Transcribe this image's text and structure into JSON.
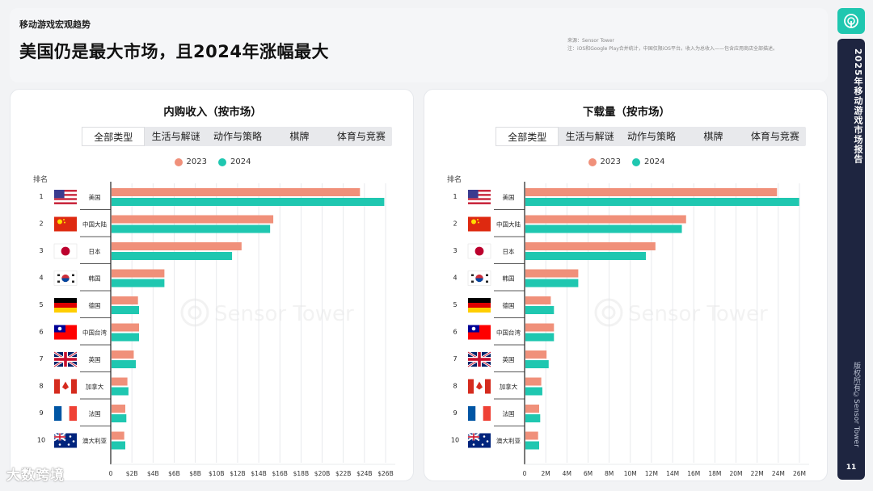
{
  "header": {
    "section_label": "移动游戏宏观趋势",
    "title": "美国仍是最大市场，且2024年涨幅最大",
    "source_line1": "来源：Sensor Tower",
    "source_line2": "注：iOS和Google Play合并统计，中国仅限iOS平台。收入为总收入——包含应用商店全部描述。"
  },
  "sidebar": {
    "report_title": "2025年移动游戏市场报告",
    "copyright": "版权所有©Sensor Tower",
    "page_number": "11"
  },
  "watermark": {
    "bottom_left": "大数跨境",
    "center": "Sensor Tower"
  },
  "colors": {
    "y2023": "#f0907a",
    "y2024": "#1fc7b0",
    "teal": "#1fc7b0",
    "navy": "#1e2540"
  },
  "tabs": [
    "全部类型",
    "生活与解谜",
    "动作与策略",
    "棋牌",
    "体育与竞赛"
  ],
  "legend": [
    "2023",
    "2024"
  ],
  "rank_header": "排名",
  "chart_data": [
    {
      "type": "bar",
      "title": "内购收入（按市场）",
      "ranks": [
        "1",
        "2",
        "3",
        "4",
        "5",
        "6",
        "7",
        "8",
        "9",
        "10"
      ],
      "categories": [
        "美国",
        "中国大陆",
        "日本",
        "韩国",
        "德国",
        "中国台湾",
        "英国",
        "加拿大",
        "法国",
        "澳大利亚"
      ],
      "flags": [
        "us",
        "cn",
        "jp",
        "kr",
        "de",
        "tw",
        "gb",
        "ca",
        "fr",
        "au"
      ],
      "series": [
        {
          "name": "2023",
          "values": [
            23.5,
            15.3,
            12.3,
            5.0,
            2.5,
            2.6,
            2.1,
            1.5,
            1.3,
            1.2
          ]
        },
        {
          "name": "2024",
          "values": [
            25.8,
            15.0,
            11.4,
            5.0,
            2.6,
            2.6,
            2.3,
            1.6,
            1.4,
            1.3
          ]
        }
      ],
      "xticks": [
        "0",
        "$2B",
        "$4B",
        "$6B",
        "$8B",
        "$10B",
        "$12B",
        "$14B",
        "$16B",
        "$18B",
        "$20B",
        "$22B",
        "$24B",
        "$26B"
      ],
      "xlim": [
        0,
        26
      ]
    },
    {
      "type": "bar",
      "title": "下载量（按市场）",
      "ranks": [
        "1",
        "2",
        "3",
        "4",
        "5",
        "6",
        "7",
        "8",
        "9",
        "10"
      ],
      "categories": [
        "美国",
        "中国大陆",
        "日本",
        "韩国",
        "德国",
        "中国台湾",
        "英国",
        "加拿大",
        "法国",
        "澳大利亚"
      ],
      "flags": [
        "us",
        "cn",
        "jp",
        "kr",
        "de",
        "tw",
        "gb",
        "ca",
        "fr",
        "au"
      ],
      "series": [
        {
          "name": "2023",
          "values": [
            23.8,
            15.2,
            12.3,
            5.0,
            2.4,
            2.7,
            2.0,
            1.5,
            1.3,
            1.2
          ]
        },
        {
          "name": "2024",
          "values": [
            25.9,
            14.8,
            11.4,
            5.0,
            2.7,
            2.7,
            2.2,
            1.6,
            1.4,
            1.3
          ]
        }
      ],
      "xticks": [
        "0",
        "2M",
        "4M",
        "6M",
        "8M",
        "10M",
        "12M",
        "14M",
        "16M",
        "18M",
        "20M",
        "22M",
        "24M",
        "26M"
      ],
      "xlim": [
        0,
        26
      ]
    }
  ]
}
